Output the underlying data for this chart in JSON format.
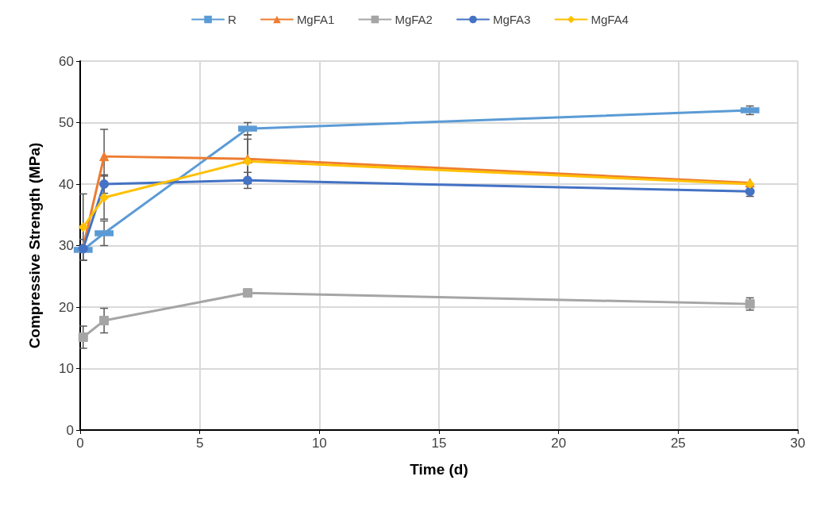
{
  "chart_data": {
    "type": "line",
    "xlabel": "Time (d)",
    "ylabel": "Compressive Strength (MPa)",
    "xlim": [
      0,
      30
    ],
    "xticks": [
      0,
      5,
      10,
      15,
      20,
      25,
      30
    ],
    "ylim": [
      0,
      60
    ],
    "yticks": [
      0,
      10,
      20,
      30,
      40,
      50,
      60
    ],
    "grid": true,
    "legend": "top",
    "x": [
      0.125,
      1,
      7,
      28
    ],
    "series": [
      {
        "name": "R",
        "color": "#5b9bd5",
        "marker": "square",
        "values": [
          29.3,
          32,
          49,
          52
        ],
        "errors": [
          1.7,
          2,
          1,
          0.7
        ]
      },
      {
        "name": "MgFA1",
        "color": "#ed7d31",
        "marker": "triangle",
        "values": [
          29.8,
          44.5,
          44.1,
          40.2
        ],
        "errors": [
          null,
          4.4,
          3.9,
          null
        ]
      },
      {
        "name": "MgFA2",
        "color": "#a5a5a5",
        "marker": "square",
        "values": [
          15.1,
          17.8,
          22.3,
          20.5
        ],
        "errors": [
          1.8,
          2,
          null,
          1
        ]
      },
      {
        "name": "MgFA3",
        "color": "#4472c4",
        "marker": "circle",
        "values": [
          29.5,
          40,
          40.6,
          38.8
        ],
        "errors": [
          null,
          1.5,
          1.3,
          0.8
        ]
      },
      {
        "name": "MgFA4",
        "color": "#ffc000",
        "marker": "diamond",
        "values": [
          33,
          37.8,
          43.7,
          40
        ],
        "errors": [
          5.4,
          3.5,
          3.6,
          null
        ]
      }
    ]
  }
}
